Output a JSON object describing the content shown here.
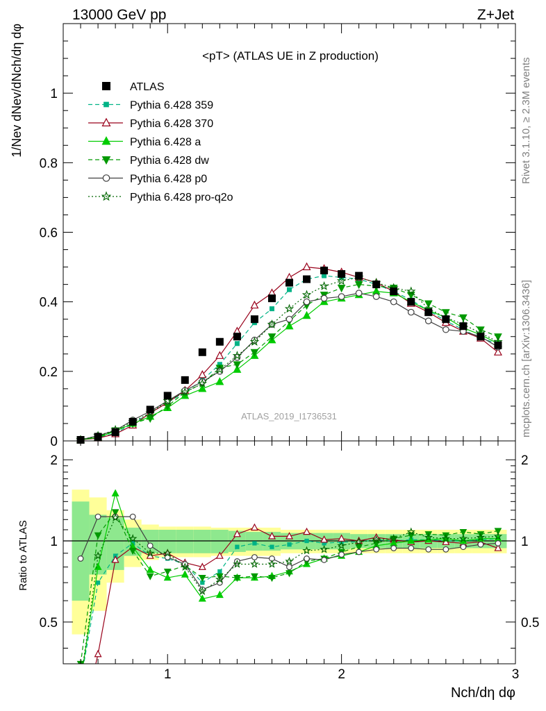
{
  "header": {
    "left": "13000 GeV pp",
    "right": "Z+Jet"
  },
  "side_text": {
    "rivet": "Rivet 3.1.10, ≥ 2.3M events",
    "mcplots": "mcplots.cern.ch [arXiv:1306.3436]"
  },
  "watermark": "ATLAS_2019_I1736531",
  "chart_data": [
    {
      "type": "scatter",
      "panel": "main",
      "title": "<pT> (ATLAS UE in Z production)",
      "xlabel": "Nch/dη dφ",
      "ylabel": "1/Nev dNev/dNch/dη dφ",
      "xlim": [
        0.4,
        3.0
      ],
      "ylim": [
        0,
        1.2
      ],
      "yticks": [
        0,
        0.2,
        0.4,
        0.6,
        0.8,
        1
      ],
      "x": [
        0.5,
        0.6,
        0.7,
        0.8,
        0.9,
        1.0,
        1.1,
        1.2,
        1.3,
        1.4,
        1.5,
        1.6,
        1.7,
        1.8,
        1.9,
        2.0,
        2.1,
        2.2,
        2.3,
        2.4,
        2.5,
        2.6,
        2.7,
        2.8,
        2.9
      ],
      "legend": {
        "placement": "top-left"
      },
      "series": [
        {
          "name": "ATLAS",
          "color": "#000000",
          "marker": "square",
          "line": "none",
          "values": [
            0.003,
            0.012,
            0.025,
            0.055,
            0.09,
            0.13,
            0.175,
            0.255,
            0.285,
            0.3,
            0.35,
            0.41,
            0.455,
            0.465,
            0.49,
            0.48,
            0.475,
            0.45,
            0.43,
            0.4,
            0.37,
            0.35,
            0.33,
            0.3,
            0.275
          ]
        },
        {
          "name": "Pythia 6.428 359",
          "color": "#00b386",
          "marker": "square-small",
          "line": "dashed",
          "values": [
            0.003,
            0.01,
            0.022,
            0.05,
            0.08,
            0.11,
            0.14,
            0.175,
            0.22,
            0.28,
            0.34,
            0.38,
            0.435,
            0.465,
            0.475,
            0.47,
            0.465,
            0.45,
            0.43,
            0.405,
            0.375,
            0.345,
            0.32,
            0.295,
            0.28
          ]
        },
        {
          "name": "Pythia 6.428 370",
          "color": "#99001a",
          "marker": "triangle-open",
          "line": "solid",
          "values": [
            0.003,
            0.008,
            0.02,
            0.045,
            0.08,
            0.11,
            0.145,
            0.19,
            0.245,
            0.315,
            0.39,
            0.425,
            0.47,
            0.5,
            0.495,
            0.485,
            0.47,
            0.455,
            0.43,
            0.395,
            0.37,
            0.34,
            0.315,
            0.295,
            0.255
          ]
        },
        {
          "name": "Pythia 6.428 a",
          "color": "#00cc00",
          "marker": "triangle",
          "line": "solid",
          "values": [
            0.003,
            0.01,
            0.028,
            0.05,
            0.07,
            0.095,
            0.13,
            0.15,
            0.17,
            0.205,
            0.245,
            0.29,
            0.33,
            0.36,
            0.4,
            0.41,
            0.42,
            0.43,
            0.425,
            0.4,
            0.375,
            0.355,
            0.325,
            0.305,
            0.28
          ]
        },
        {
          "name": "Pythia 6.428 dw",
          "color": "#009900",
          "marker": "triangle-down",
          "line": "dashed",
          "values": [
            0.003,
            0.012,
            0.03,
            0.05,
            0.065,
            0.1,
            0.14,
            0.165,
            0.21,
            0.22,
            0.255,
            0.3,
            0.345,
            0.39,
            0.42,
            0.44,
            0.45,
            0.445,
            0.44,
            0.42,
            0.395,
            0.37,
            0.355,
            0.32,
            0.3
          ]
        },
        {
          "name": "Pythia 6.428 p0",
          "color": "#404040",
          "marker": "circle-open",
          "line": "solid",
          "values": [
            0.003,
            0.015,
            0.03,
            0.06,
            0.085,
            0.115,
            0.145,
            0.17,
            0.2,
            0.24,
            0.29,
            0.335,
            0.35,
            0.4,
            0.41,
            0.415,
            0.425,
            0.415,
            0.4,
            0.37,
            0.345,
            0.32,
            0.315,
            0.3,
            0.27
          ]
        },
        {
          "name": "Pythia 6.428 pro-q2o",
          "color": "#006600",
          "marker": "star",
          "line": "dotted",
          "values": [
            0.003,
            0.015,
            0.032,
            0.055,
            0.08,
            0.115,
            0.14,
            0.165,
            0.205,
            0.245,
            0.285,
            0.335,
            0.38,
            0.42,
            0.445,
            0.46,
            0.47,
            0.455,
            0.44,
            0.43,
            0.38,
            0.355,
            0.335,
            0.31,
            0.285
          ]
        }
      ]
    },
    {
      "type": "line",
      "panel": "ratio",
      "ylabel": "Ratio to ATLAS",
      "xlabel": "Nch/dη dφ",
      "xlim": [
        0.4,
        3.0
      ],
      "ylim": [
        0.35,
        2.35
      ],
      "yticks": [
        0.5,
        1,
        2
      ],
      "xticks": [
        1,
        2,
        3
      ],
      "reference_line": 1,
      "x": [
        0.5,
        0.6,
        0.7,
        0.8,
        0.9,
        1.0,
        1.1,
        1.2,
        1.3,
        1.4,
        1.5,
        1.6,
        1.7,
        1.8,
        1.9,
        2.0,
        2.1,
        2.2,
        2.3,
        2.4,
        2.5,
        2.6,
        2.7,
        2.8,
        2.9
      ],
      "band_inner": [
        0.4,
        0.25,
        0.22,
        0.12,
        0.1,
        0.1,
        0.1,
        0.1,
        0.1,
        0.09,
        0.08,
        0.08,
        0.07,
        0.07,
        0.07,
        0.07,
        0.06,
        0.06,
        0.06,
        0.06,
        0.06,
        0.06,
        0.06,
        0.06,
        0.06
      ],
      "band_outer": [
        0.55,
        0.45,
        0.3,
        0.2,
        0.15,
        0.13,
        0.13,
        0.13,
        0.12,
        0.12,
        0.12,
        0.12,
        0.1,
        0.1,
        0.1,
        0.1,
        0.1,
        0.1,
        0.1,
        0.1,
        0.1,
        0.1,
        0.1,
        0.1,
        0.1
      ],
      "band_colors": {
        "inner": "#8ee88e",
        "outer": "#ffff99"
      },
      "series": [
        {
          "name": "Pythia 6.428 359",
          "color": "#00b386",
          "marker": "square-small",
          "line": "dashed",
          "values": [
            0.3,
            0.7,
            0.88,
            0.98,
            0.88,
            0.86,
            0.82,
            0.7,
            0.77,
            0.95,
            0.98,
            0.95,
            0.97,
            1.0,
            0.98,
            0.99,
            0.99,
            1.01,
            1.0,
            1.01,
            1.01,
            1.0,
            1.0,
            1.01,
            1.02
          ]
        },
        {
          "name": "Pythia 6.428 370",
          "color": "#99001a",
          "marker": "triangle-open",
          "line": "solid",
          "values": [
            0.2,
            0.38,
            0.85,
            0.95,
            0.88,
            0.9,
            0.83,
            0.8,
            0.88,
            1.06,
            1.12,
            1.04,
            1.04,
            1.08,
            1.01,
            1.02,
            1.0,
            1.03,
            1.01,
            0.99,
            1.0,
            0.99,
            0.98,
            0.99,
            0.94
          ]
        },
        {
          "name": "Pythia 6.428 a",
          "color": "#00cc00",
          "marker": "triangle",
          "line": "solid",
          "values": [
            0.3,
            0.8,
            1.5,
            0.95,
            0.78,
            0.73,
            0.75,
            0.61,
            0.63,
            0.73,
            0.73,
            0.74,
            0.77,
            0.82,
            0.86,
            0.88,
            0.91,
            0.96,
            0.98,
            1.0,
            1.01,
            1.02,
            1.0,
            1.02,
            1.02
          ]
        },
        {
          "name": "Pythia 6.428 dw",
          "color": "#009900",
          "marker": "triangle-down",
          "line": "dashed",
          "values": [
            0.35,
            1.05,
            1.28,
            0.92,
            0.74,
            0.77,
            0.81,
            0.73,
            0.74,
            0.73,
            0.74,
            0.73,
            0.76,
            0.84,
            0.86,
            0.91,
            0.95,
            0.98,
            1.02,
            1.05,
            1.06,
            1.05,
            1.08,
            1.06,
            1.09
          ]
        },
        {
          "name": "Pythia 6.428 p0",
          "color": "#404040",
          "marker": "circle-open",
          "line": "solid",
          "values": [
            0.86,
            1.23,
            1.23,
            1.23,
            0.96,
            0.87,
            0.82,
            0.66,
            0.7,
            0.84,
            0.87,
            0.86,
            0.8,
            0.86,
            0.85,
            0.89,
            0.91,
            0.93,
            0.94,
            0.94,
            0.93,
            0.93,
            0.95,
            0.97,
            0.98
          ]
        },
        {
          "name": "Pythia 6.428 pro-q2o",
          "color": "#006600",
          "marker": "star",
          "line": "dotted",
          "values": [
            0.3,
            0.88,
            1.22,
            1.02,
            0.9,
            0.9,
            0.8,
            0.65,
            0.72,
            0.82,
            0.82,
            0.82,
            0.84,
            0.92,
            0.93,
            0.96,
            0.99,
            1.01,
            1.02,
            1.08,
            1.03,
            1.02,
            1.02,
            1.03,
            1.04
          ]
        }
      ]
    }
  ]
}
